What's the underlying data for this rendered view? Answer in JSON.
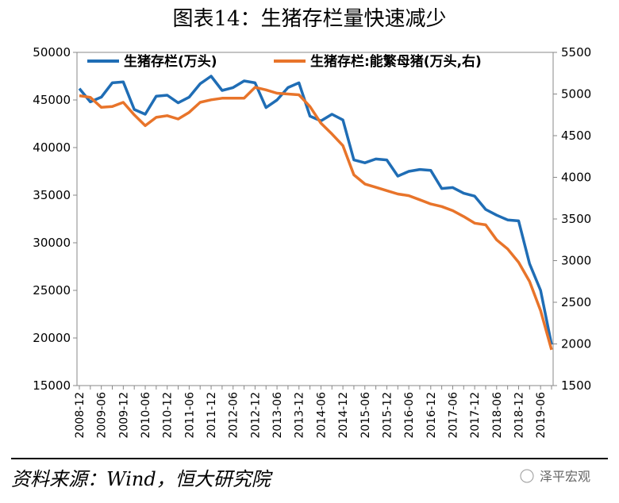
{
  "chart_data": {
    "type": "line",
    "title": "图表14：生猪存栏量快速减少",
    "categories": [
      "2008-12",
      null,
      "2009-06",
      null,
      "2009-12",
      null,
      "2010-06",
      null,
      "2010-12",
      null,
      "2011-06",
      null,
      "2011-12",
      null,
      "2012-06",
      null,
      "2012-12",
      null,
      "2013-06",
      null,
      "2013-12",
      null,
      "2014-06",
      null,
      "2014-12",
      null,
      "2015-06",
      null,
      "2015-12",
      null,
      "2016-06",
      null,
      "2016-12",
      null,
      "2017-06",
      null,
      "2017-12",
      null,
      "2018-06",
      null,
      "2018-12",
      null,
      "2019-06",
      null
    ],
    "series": [
      {
        "name": "生猪存栏(万头)",
        "color": "#1f6db5",
        "values": [
          46200,
          44800,
          45300,
          46800,
          46900,
          44000,
          43500,
          45400,
          45500,
          44700,
          45300,
          46700,
          47500,
          46000,
          46300,
          47000,
          46800,
          44200,
          45000,
          46300,
          46800,
          43300,
          42800,
          43500,
          42900,
          38700,
          38400,
          38800,
          38700,
          37000,
          37500,
          37700,
          37600,
          35700,
          35800,
          35200,
          34900,
          33500,
          32900,
          32400,
          32300,
          27800,
          25000,
          19300
        ]
      },
      {
        "name": "生猪存栏:能繁母猪(万头,右)",
        "color": "#e8742a",
        "axis": "y2",
        "values": [
          4980,
          4960,
          4840,
          4850,
          4900,
          4750,
          4620,
          4720,
          4740,
          4700,
          4780,
          4900,
          4930,
          4950,
          4950,
          4950,
          5080,
          5050,
          5010,
          5000,
          4990,
          4850,
          4650,
          4520,
          4380,
          4030,
          3920,
          3880,
          3840,
          3800,
          3780,
          3730,
          3680,
          3650,
          3600,
          3530,
          3450,
          3430,
          3250,
          3140,
          2980,
          2750,
          2400,
          1930
        ]
      }
    ],
    "ylim": [
      15000,
      50000
    ],
    "yticks": [
      15000,
      20000,
      25000,
      30000,
      35000,
      40000,
      45000,
      50000
    ],
    "y2lim": [
      1500,
      5500
    ],
    "y2ticks": [
      1500,
      2000,
      2500,
      3000,
      3500,
      4000,
      4500,
      5000,
      5500
    ],
    "source": "资料来源：Wind，恒大研究院",
    "watermark": "泽平宏观"
  }
}
